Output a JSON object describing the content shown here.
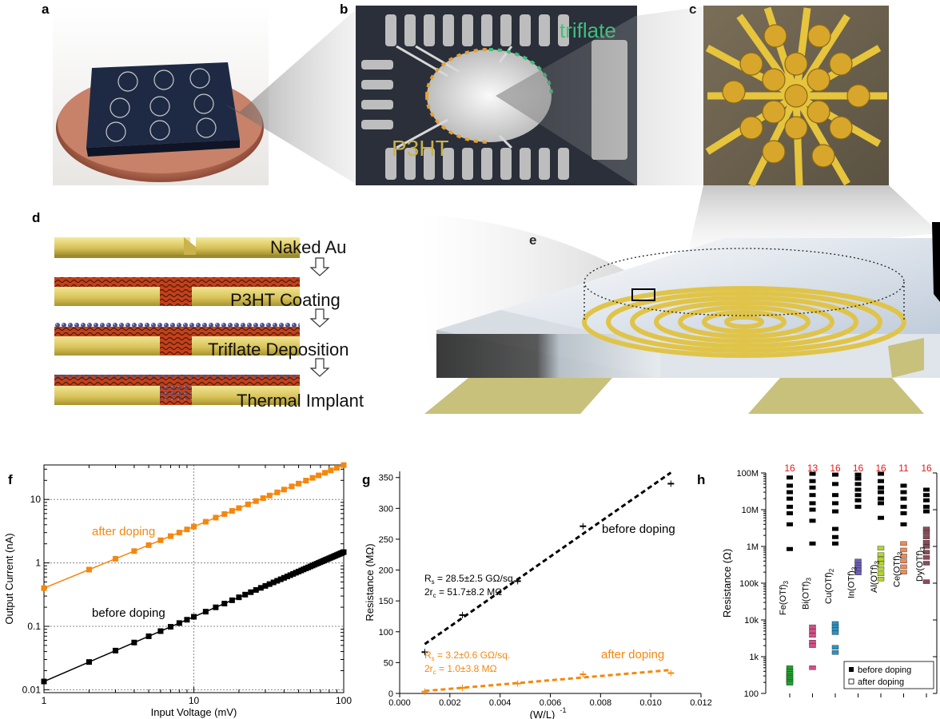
{
  "panels": {
    "a": "a",
    "b": "b",
    "c": "c",
    "d": "d",
    "e": "e",
    "f": "f",
    "g": "g",
    "h": "h"
  },
  "photo_b": {
    "label_triflate": "triflate",
    "label_p3ht": "P3HT"
  },
  "process_d": {
    "steps": [
      "Naked Au",
      "P3HT Coating",
      "Triflate Deposition",
      "Thermal Implant"
    ]
  },
  "colors": {
    "orange": "#f5870f",
    "black": "#000000",
    "red_count": "#e41a1c",
    "gold": "#d9c35a",
    "triflate_green": "#3fc07a"
  },
  "chart_f": {
    "type": "line",
    "xlabel": "Input Voltage (mV)",
    "ylabel": "Output Current (nA)",
    "x_scale": "log",
    "y_scale": "log",
    "xlim": [
      1,
      100
    ],
    "ylim": [
      0.009,
      35
    ],
    "x_ticks": [
      "1",
      "10",
      "100"
    ],
    "y_ticks": [
      "0.01",
      "0.1",
      "1",
      "10"
    ],
    "annotations": [
      "after doping",
      "before doping"
    ],
    "series": [
      {
        "name": "after doping",
        "color": "#f5870f",
        "current_at_1mV": 0.4,
        "slope": 0.97
      },
      {
        "name": "before doping",
        "color": "#000000",
        "current_at_1mV": 0.0135,
        "slope": 1.02
      }
    ]
  },
  "chart_g": {
    "type": "scatter",
    "xlabel": "(W/L)",
    "xlabel_sup": "-1",
    "ylabel": "Resistance (MΩ)",
    "xlim": [
      0,
      0.012
    ],
    "ylim": [
      0,
      360
    ],
    "x_ticks": [
      "0.000",
      "0.002",
      "0.004",
      "0.006",
      "0.008",
      "0.010",
      "0.012"
    ],
    "y_ticks": [
      "0",
      "50",
      "100",
      "150",
      "200",
      "250",
      "300",
      "350"
    ],
    "before": {
      "label": "before doping",
      "points": [
        [
          0.001,
          67
        ],
        [
          0.0025,
          127
        ],
        [
          0.0047,
          182
        ],
        [
          0.0073,
          271
        ],
        [
          0.0108,
          340
        ]
      ],
      "fit": [
        [
          0.001,
          80
        ],
        [
          0.0108,
          358
        ]
      ],
      "Rs": "R",
      "Rs_sub": "s",
      "Rs_val": " = 28.5±2.5 GΩ/sq.",
      "rc_pre": "2r",
      "rc_sub": "c",
      "rc_val": " = 51.7±8.2 MΩ"
    },
    "after": {
      "label": "after doping",
      "points": [
        [
          0.001,
          3
        ],
        [
          0.0025,
          9
        ],
        [
          0.0047,
          16
        ],
        [
          0.0073,
          31
        ],
        [
          0.0108,
          33
        ]
      ],
      "fit": [
        [
          0.001,
          4
        ],
        [
          0.0108,
          38
        ]
      ],
      "Rs": "R",
      "Rs_sub": "s",
      "Rs_val": " = 3.2±0.6 GΩ/sq.",
      "rc_pre": "2r",
      "rc_sub": "c",
      "rc_val": " = 1.0±3.8 MΩ"
    }
  },
  "chart_h": {
    "type": "scatter",
    "ylabel": "Resistance (Ω)",
    "y_scale": "log",
    "ylim": [
      100,
      100000000
    ],
    "y_ticks": [
      "100",
      "1k",
      "10k",
      "100k",
      "1M",
      "10M",
      "100M"
    ],
    "legend": [
      "before doping",
      "after doping"
    ],
    "categories": [
      {
        "name": "Fe(OTf)",
        "sub": "3",
        "count": "16",
        "color": "#1fa22e",
        "before": [
          75000000,
          45000000,
          30000000,
          20000000,
          12000000,
          8000000,
          4000000,
          850000
        ],
        "after": [
          500,
          400,
          350,
          300,
          270,
          240,
          210,
          190
        ]
      },
      {
        "name": "Bi(OTf)",
        "sub": "3",
        "count": "13",
        "color": "#d24f86",
        "before": [
          95000000,
          60000000,
          40000000,
          25000000,
          15000000,
          10000000,
          5000000,
          1200000
        ],
        "after": [
          6500,
          5000,
          3800,
          2500,
          2000,
          500
        ]
      },
      {
        "name": "Cu(OTf)",
        "sub": "2",
        "count": "16",
        "color": "#2c93c2",
        "before": [
          90000000,
          50000000,
          25000000,
          15000000,
          9000000,
          3000000,
          1800000,
          1200000
        ],
        "after": [
          8000,
          6500,
          5500,
          4500,
          1800,
          1300
        ]
      },
      {
        "name": "In(OTf)",
        "sub": "3",
        "count": "16",
        "color": "#6d5fb6",
        "before": [
          90000000,
          70000000,
          50000000,
          35000000,
          25000000,
          18000000,
          12000000
        ],
        "after": [
          400000,
          320000,
          270000,
          230000,
          190000
        ]
      },
      {
        "name": "Al(OTf)",
        "sub": "3",
        "count": "16",
        "color": "#b4d42f",
        "before": [
          95000000,
          60000000,
          40000000,
          30000000,
          20000000,
          15000000,
          6000000
        ],
        "after": [
          900000,
          600000,
          450000,
          350000,
          250000,
          180000,
          130000
        ]
      },
      {
        "name": "Ce(OTf)",
        "sub": "3",
        "count": "11",
        "color": "#f08a55",
        "before": [
          45000000,
          30000000,
          20000000,
          12000000,
          8000000,
          4000000
        ],
        "after": [
          1200000,
          800000,
          550000,
          400000,
          280000,
          200000
        ]
      },
      {
        "name": "Dy(OTf)",
        "sub": "3",
        "count": "16",
        "color": "#8a4b5a",
        "before": [
          35000000,
          25000000,
          18000000,
          12000000,
          9000000
        ],
        "after": [
          3000000,
          2400000,
          1800000,
          1300000,
          1000000,
          700000,
          500000,
          350000,
          110000
        ]
      }
    ]
  }
}
